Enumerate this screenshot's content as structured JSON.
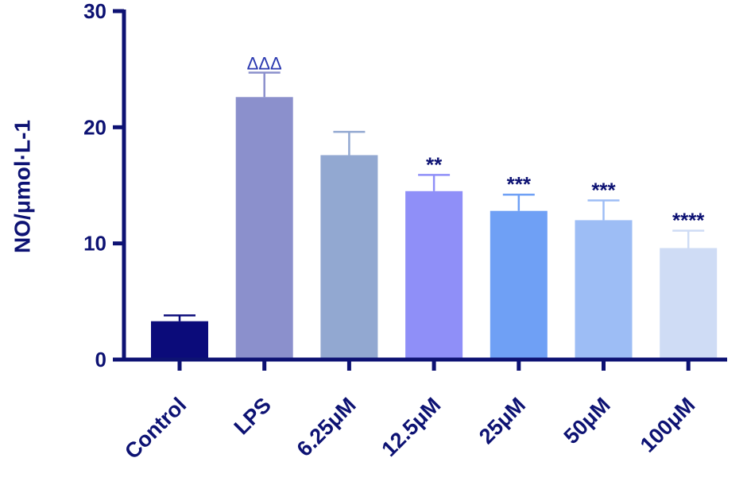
{
  "chart_data": {
    "type": "bar",
    "title": "",
    "xlabel": "",
    "ylabel": "NO/μmol·L-1",
    "ylim": [
      0,
      30
    ],
    "yticks": [
      0,
      10,
      20,
      30
    ],
    "grid": false,
    "categories": [
      "Control",
      "LPS",
      "6.25μM",
      "12.5μM",
      "25μM",
      "50μM",
      "100μM"
    ],
    "values": [
      3.3,
      22.6,
      17.6,
      14.5,
      12.8,
      12.0,
      9.6
    ],
    "errors": [
      0.5,
      2.1,
      2.0,
      1.4,
      1.4,
      1.7,
      1.5
    ],
    "annotations": [
      "",
      "ΔΔΔ",
      "",
      "**",
      "***",
      "***",
      "****"
    ],
    "colors": [
      "#0b0b7a",
      "#8b90cc",
      "#92a8d1",
      "#8f8ff8",
      "#6fa0f5",
      "#9dbdf5",
      "#cfdcf5"
    ],
    "axis_color": "#0d1273"
  }
}
